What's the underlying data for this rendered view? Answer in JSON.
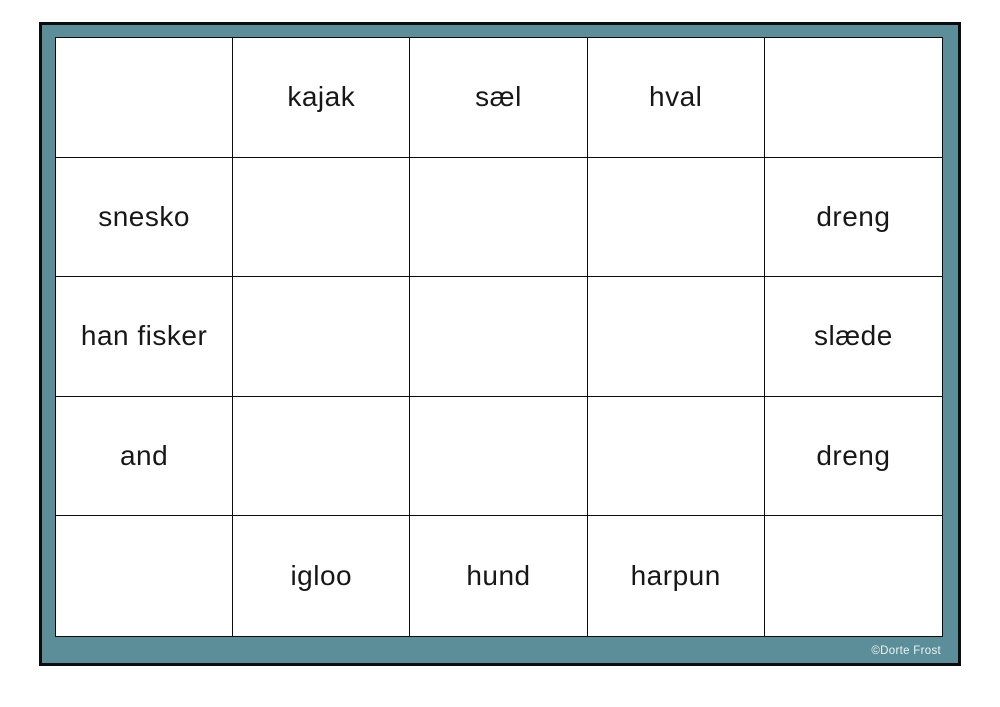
{
  "board": {
    "rows": [
      [
        "",
        "kajak",
        "sæl",
        "hval",
        ""
      ],
      [
        "snesko",
        "",
        "",
        "",
        "dreng"
      ],
      [
        "han fisker",
        "",
        "",
        "",
        "slæde"
      ],
      [
        "and",
        "",
        "",
        "",
        "dreng"
      ],
      [
        "",
        "igloo",
        "hund",
        "harpun",
        ""
      ]
    ]
  },
  "footer": {
    "copyright": "©Dorte Frost"
  },
  "colors": {
    "frame_teal": "#5b8e99",
    "border_black": "#0c0c0c",
    "cell_background": "#ffffff",
    "word_text": "#171717",
    "copyright_text": "#edf3f4"
  }
}
